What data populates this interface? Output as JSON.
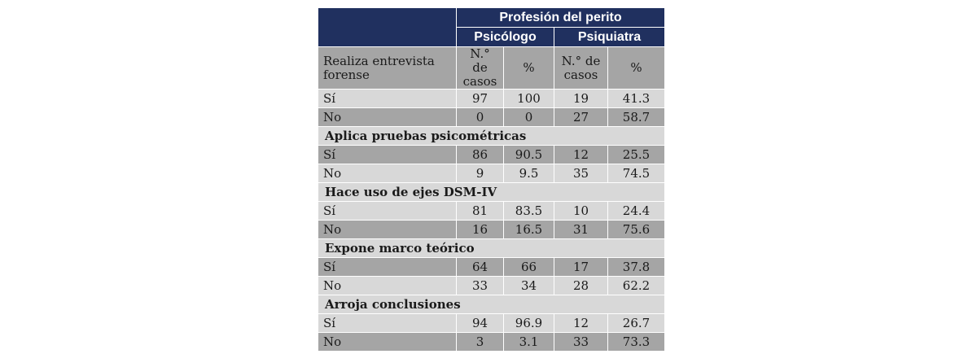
{
  "header": {
    "group_title": "Profesión del perito",
    "col_group_1": "Psicólogo",
    "col_group_2": "Psiquiatra"
  },
  "subheader": {
    "first_label": "Realiza entrevista forense",
    "cases_label": "N.° de casos",
    "percent_label": "%"
  },
  "rows": {
    "r1": {
      "label": "Sí",
      "c1": "97",
      "p1": "100",
      "c2": "19",
      "p2": "41.3"
    },
    "r2": {
      "label": "No",
      "c1": "0",
      "p1": "0",
      "c2": "27",
      "p2": "58.7"
    },
    "s2": "Aplica pruebas psicométricas",
    "r3": {
      "label": "Sí",
      "c1": "86",
      "p1": "90.5",
      "c2": "12",
      "p2": "25.5"
    },
    "r4": {
      "label": "No",
      "c1": "9",
      "p1": "9.5",
      "c2": "35",
      "p2": "74.5"
    },
    "s3": "Hace uso de ejes DSM-IV",
    "r5": {
      "label": "Sí",
      "c1": "81",
      "p1": "83.5",
      "c2": "10",
      "p2": "24.4"
    },
    "r6": {
      "label": "No",
      "c1": "16",
      "p1": "16.5",
      "c2": "31",
      "p2": "75.6"
    },
    "s4": "Expone marco teórico",
    "r7": {
      "label": "Sí",
      "c1": "64",
      "p1": "66",
      "c2": "17",
      "p2": "37.8"
    },
    "r8": {
      "label": "No",
      "c1": "33",
      "p1": "34",
      "c2": "28",
      "p2": "62.2"
    },
    "s5": "Arroja conclusiones",
    "r9": {
      "label": "Sí",
      "c1": "94",
      "p1": "96.9",
      "c2": "12",
      "p2": "26.7"
    },
    "r10": {
      "label": "No",
      "c1": "3",
      "p1": "3.1",
      "c2": "33",
      "p2": "73.3"
    }
  }
}
